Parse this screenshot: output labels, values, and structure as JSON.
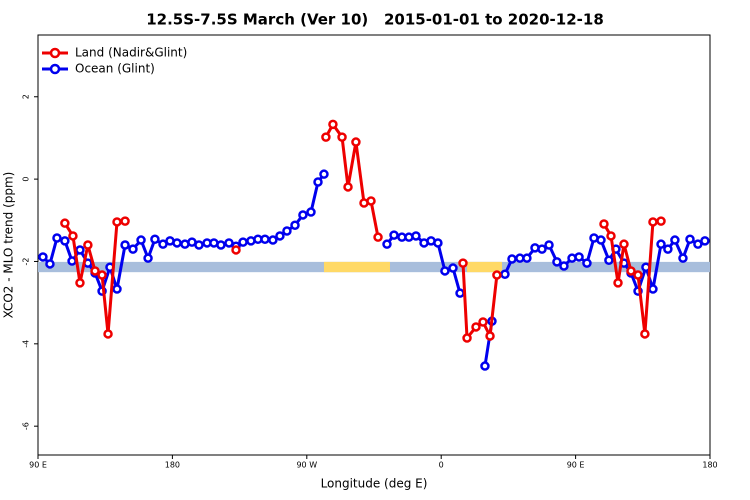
{
  "chart_data": {
    "type": "line",
    "title": "12.5S-7.5S March (Ver 10)   2015-01-01 to 2020-12-18",
    "xlabel": "Longitude (deg E)",
    "ylabel": "XCO2 - MLO trend (ppm)",
    "xlim": [
      90,
      540
    ],
    "xticks": [
      {
        "value": 90,
        "label": "90 E"
      },
      180,
      {
        "value": 270,
        "label": "90 W"
      },
      {
        "value": 360,
        "label": "0"
      },
      {
        "value": 450,
        "label": "90 E"
      },
      {
        "value": 540,
        "label": "180"
      }
    ],
    "ylim": [
      -6.7,
      3.5
    ],
    "yticks": [
      2,
      0,
      -2,
      -4,
      -6
    ],
    "legend": "top-left",
    "band": {
      "ylim": [
        -2.26,
        -2.01
      ],
      "color": "#a8bedc",
      "segments": [
        {
          "x": [
            281.5,
            325.7
          ],
          "color": "#ffd966"
        },
        {
          "x": [
            377.3,
            400.7
          ],
          "color": "#ffd966"
        }
      ]
    },
    "series": [
      {
        "name": "Land (Nadir&Glint)",
        "color": "#ee0000",
        "x": [
          108,
          113.4,
          118.1,
          123.4,
          128.2,
          132.9,
          136.9,
          142.9,
          148.3,
          null,
          222.6,
          null,
          282.8,
          287.5,
          293.6,
          297.6,
          302.9,
          308.3,
          313,
          317.7,
          null,
          374.6,
          377.3,
          383.3,
          388,
          392.7,
          397.3,
          null,
          469,
          473.7,
          478.4,
          482.4,
          487.1,
          491.8,
          496.4,
          501.8,
          507.2
        ],
        "values": [
          -1.07,
          -1.38,
          -2.52,
          -1.6,
          -2.23,
          -2.33,
          -3.76,
          -1.04,
          -1.02,
          null,
          -1.72,
          null,
          1.02,
          1.33,
          1.02,
          -0.19,
          0.9,
          -0.58,
          -0.53,
          -1.41,
          null,
          -2.04,
          -3.86,
          -3.59,
          -3.47,
          -3.81,
          -2.33,
          null,
          -1.09,
          -1.38,
          -2.52,
          -1.58,
          -2.23,
          -2.33,
          -3.76,
          -1.04,
          -1.02
        ]
      },
      {
        "name": "Ocean (Glint)",
        "color": "#0000ee",
        "x": [
          93.3,
          98,
          102.7,
          108,
          112.8,
          118.1,
          123.4,
          128.2,
          132.9,
          138.2,
          142.9,
          148.3,
          153.6,
          159,
          163.7,
          168.3,
          173.7,
          178.4,
          183.1,
          188.4,
          193.1,
          197.8,
          203.2,
          207.8,
          212.5,
          217.9,
          222.6,
          227.3,
          232.6,
          237.3,
          242,
          247.3,
          252,
          256.7,
          262.1,
          267.4,
          272.8,
          277.5,
          281.5,
          null,
          323.7,
          328.4,
          333.7,
          338.4,
          343.1,
          348.5,
          353.2,
          357.8,
          362.5,
          367.9,
          372.6,
          null,
          389.3,
          394,
          null,
          402.7,
          407.4,
          412.7,
          417.4,
          422.8,
          427.5,
          432.2,
          437.5,
          442.2,
          447.6,
          452.3,
          457.6,
          462.3,
          467,
          472.3,
          477,
          482.4,
          487.1,
          491.8,
          497.1,
          501.8,
          507.2,
          511.8,
          516.5,
          521.9,
          526.6,
          531.9,
          536.6
        ],
        "values": [
          -1.89,
          -2.06,
          -1.43,
          -1.5,
          -1.99,
          -1.72,
          -2.04,
          -2.28,
          -2.72,
          -2.14,
          -2.67,
          -1.6,
          -1.7,
          -1.48,
          -1.92,
          -1.46,
          -1.58,
          -1.5,
          -1.55,
          -1.58,
          -1.53,
          -1.6,
          -1.55,
          -1.55,
          -1.6,
          -1.55,
          -1.63,
          -1.53,
          -1.5,
          -1.46,
          -1.46,
          -1.48,
          -1.38,
          -1.26,
          -1.12,
          -0.87,
          -0.8,
          -0.07,
          0.12,
          null,
          -1.58,
          -1.36,
          -1.41,
          -1.41,
          -1.38,
          -1.55,
          -1.5,
          -1.55,
          -2.23,
          -2.16,
          -2.77,
          null,
          -4.54,
          -3.45,
          null,
          -2.31,
          -1.94,
          -1.92,
          -1.92,
          -1.67,
          -1.7,
          -1.6,
          -2.01,
          -2.11,
          -1.92,
          -1.89,
          -2.04,
          -1.43,
          -1.48,
          -1.97,
          -1.7,
          -2.04,
          -2.28,
          -2.72,
          -2.14,
          -2.67,
          -1.58,
          -1.7,
          -1.48,
          -1.92,
          -1.46,
          -1.58,
          -1.5
        ]
      }
    ]
  }
}
